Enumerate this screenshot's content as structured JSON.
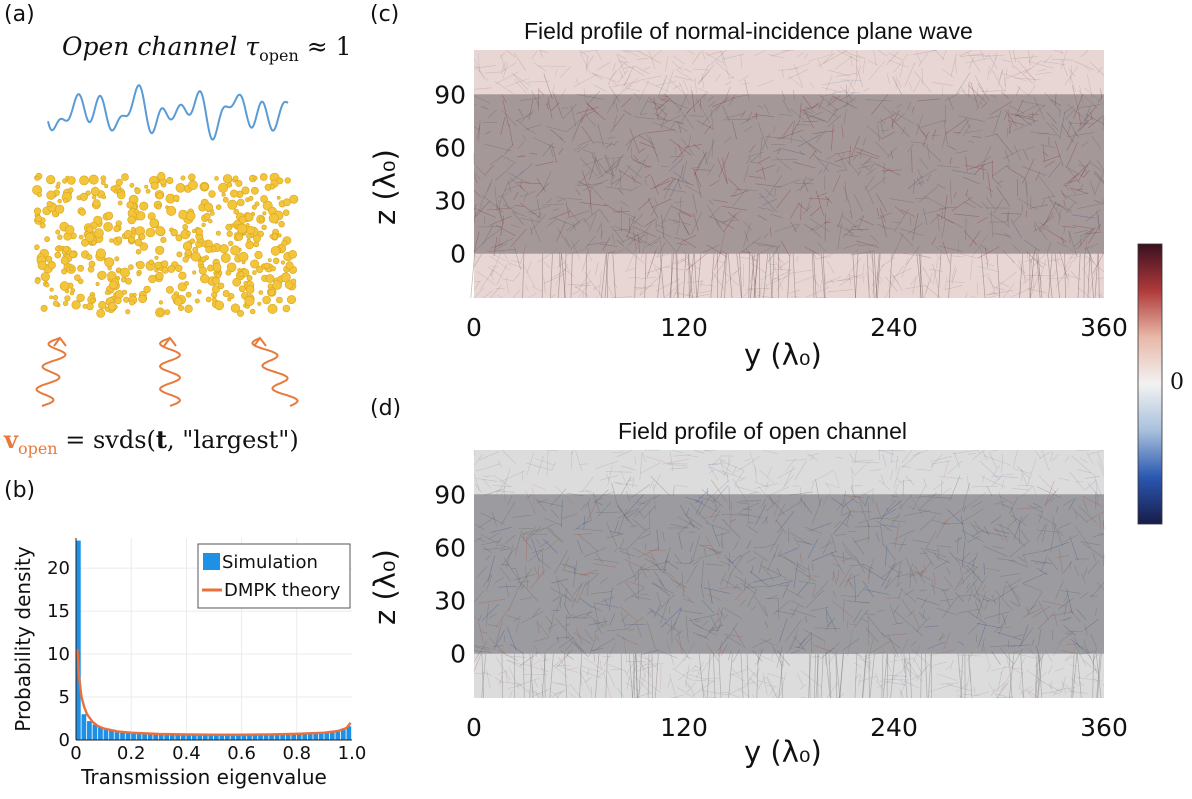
{
  "panel_a": {
    "label": "(a)",
    "title_text": "Open channel τ",
    "title_sub": "open",
    "title_approx": " ≈ 1",
    "formula_v": "v",
    "formula_sub": "open",
    "formula_rest": " = svds(",
    "formula_t": "t",
    "formula_end": ", \"largest\")",
    "colors": {
      "wave": "#5b9bd5",
      "scatterer_fill": "#f3c53a",
      "scatterer_edge": "#d9a520",
      "input_wave": "#e87a3c"
    }
  },
  "panel_b": {
    "label": "(b)",
    "chart_data": {
      "type": "bar",
      "xlabel": "Transmission eigenvalue",
      "ylabel": "Probability density",
      "xlim": [
        0,
        1.0
      ],
      "ylim": [
        0,
        23.5
      ],
      "xticks": [
        "0",
        "0.2",
        "0.4",
        "0.6",
        "0.8",
        "1.0"
      ],
      "yticks": [
        "0",
        "5",
        "10",
        "15",
        "20"
      ],
      "bin_width": 0.02,
      "bin_starts": [
        0.0,
        0.02,
        0.04,
        0.06,
        0.08,
        0.1,
        0.12,
        0.14,
        0.16,
        0.18,
        0.2,
        0.22,
        0.24,
        0.26,
        0.28,
        0.3,
        0.32,
        0.34,
        0.36,
        0.38,
        0.4,
        0.42,
        0.44,
        0.46,
        0.48,
        0.5,
        0.52,
        0.54,
        0.56,
        0.58,
        0.6,
        0.62,
        0.64,
        0.66,
        0.68,
        0.7,
        0.72,
        0.74,
        0.76,
        0.78,
        0.8,
        0.82,
        0.84,
        0.86,
        0.88,
        0.9,
        0.92,
        0.94,
        0.96,
        0.98
      ],
      "series": [
        {
          "name": "Simulation",
          "type": "bar",
          "color": "#1e90e6",
          "values": [
            23.2,
            3.0,
            2.2,
            1.8,
            1.5,
            1.3,
            1.1,
            1.0,
            0.9,
            0.85,
            0.8,
            0.75,
            0.7,
            0.7,
            0.68,
            0.66,
            0.65,
            0.64,
            0.63,
            0.62,
            0.62,
            0.62,
            0.61,
            0.6,
            0.6,
            0.6,
            0.6,
            0.6,
            0.6,
            0.61,
            0.61,
            0.62,
            0.62,
            0.63,
            0.64,
            0.65,
            0.66,
            0.67,
            0.69,
            0.7,
            0.72,
            0.74,
            0.76,
            0.78,
            0.8,
            0.85,
            0.9,
            1.0,
            1.2,
            1.6
          ]
        },
        {
          "name": "DMPK theory",
          "type": "line",
          "color": "#e8703c",
          "x": [
            0.005,
            0.01,
            0.02,
            0.03,
            0.04,
            0.06,
            0.08,
            0.1,
            0.15,
            0.2,
            0.3,
            0.4,
            0.5,
            0.6,
            0.7,
            0.8,
            0.9,
            0.95,
            0.98,
            0.995
          ],
          "y": [
            10.6,
            7.6,
            5.0,
            3.8,
            3.0,
            2.1,
            1.6,
            1.35,
            1.0,
            0.85,
            0.7,
            0.64,
            0.62,
            0.62,
            0.65,
            0.72,
            0.85,
            1.05,
            1.4,
            2.0
          ]
        }
      ],
      "legend_position": "top-right",
      "grid": true
    }
  },
  "panel_c": {
    "label": "(c)",
    "chart_data": {
      "type": "heatmap",
      "title": "Field profile of normal-incidence plane wave",
      "xlabel": "y (λ₀)",
      "ylabel": "z (λ₀)",
      "xlim": [
        0,
        360
      ],
      "ylim": [
        -25,
        115
      ],
      "xticks": [
        "0",
        "120",
        "240",
        "360"
      ],
      "yticks": [
        "0",
        "30",
        "60",
        "90"
      ],
      "medium_z_range": [
        0,
        90
      ]
    }
  },
  "panel_d": {
    "label": "(d)",
    "chart_data": {
      "type": "heatmap",
      "title": "Field profile of open channel",
      "xlabel": "y (λ₀)",
      "ylabel": "z (λ₀)",
      "xlim": [
        0,
        360
      ],
      "ylim": [
        -25,
        115
      ],
      "xticks": [
        "0",
        "120",
        "240",
        "360"
      ],
      "yticks": [
        "0",
        "30",
        "60",
        "90"
      ],
      "medium_z_range": [
        0,
        90
      ]
    }
  },
  "colorbar": {
    "tick_label": "0",
    "colors": [
      "#3a1020",
      "#b03a3a",
      "#e8b8a8",
      "#f2f2f2",
      "#a8c0dc",
      "#2a58b0",
      "#181c4a"
    ]
  }
}
